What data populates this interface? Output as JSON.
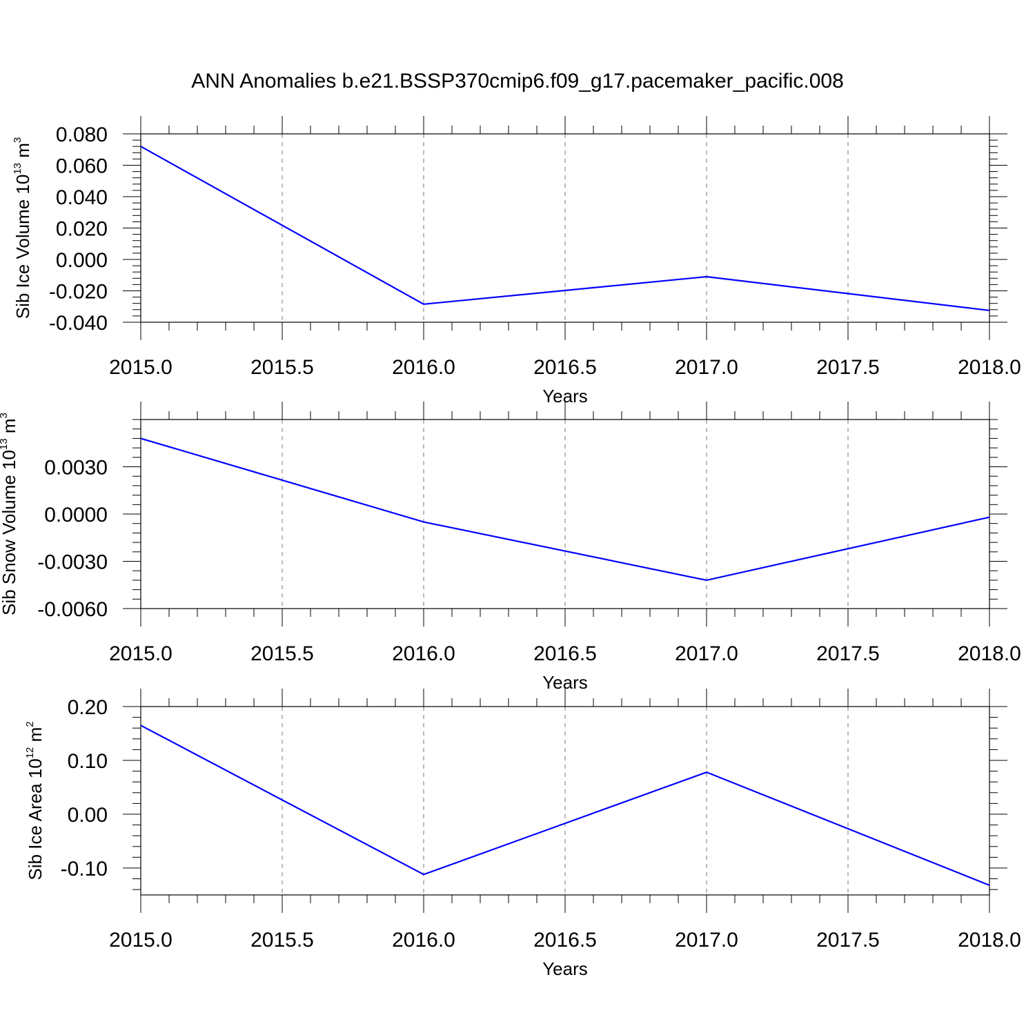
{
  "title": "ANN Anomalies b.e21.BSSP370cmip6.f09_g17.pacemaker_pacific.008",
  "chart_data": [
    {
      "type": "line",
      "title": "",
      "xlabel": "Years",
      "ylabel": {
        "base": "Sib Ice Volume 10",
        "exp1": "13",
        "unit": " m",
        "exp2": "3"
      },
      "xlim": [
        2015.0,
        2018.0
      ],
      "ylim": [
        -0.04,
        0.08
      ],
      "x_ticks": [
        2015.0,
        2015.5,
        2016.0,
        2016.5,
        2017.0,
        2017.5,
        2018.0
      ],
      "x_tick_labels": [
        "2015.0",
        "2015.5",
        "2016.0",
        "2016.5",
        "2017.0",
        "2017.5",
        "2018.0"
      ],
      "y_ticks": [
        0.08,
        0.06,
        0.04,
        0.02,
        0.0,
        -0.02,
        -0.04
      ],
      "y_tick_labels": [
        "0.080",
        "0.060",
        "0.040",
        "0.020",
        "0.000",
        "-0.020",
        "-0.040"
      ],
      "grid": "vertical dashed",
      "series": [
        {
          "color": "#0000ff",
          "x": [
            2015,
            2016,
            2017,
            2018
          ],
          "values": [
            0.072,
            -0.0285,
            -0.011,
            -0.0325
          ]
        }
      ]
    },
    {
      "type": "line",
      "title": "",
      "xlabel": "Years",
      "ylabel": {
        "base": "Sib Snow Volume 10",
        "exp1": "13",
        "unit": " m",
        "exp2": "3"
      },
      "xlim": [
        2015.0,
        2018.0
      ],
      "ylim": [
        -0.006,
        0.006
      ],
      "x_ticks": [
        2015.0,
        2015.5,
        2016.0,
        2016.5,
        2017.0,
        2017.5,
        2018.0
      ],
      "x_tick_labels": [
        "2015.0",
        "2015.5",
        "2016.0",
        "2016.5",
        "2017.0",
        "2017.5",
        "2018.0"
      ],
      "y_ticks": [
        0.003,
        0.0,
        -0.003,
        -0.006
      ],
      "y_tick_labels": [
        "0.0030",
        "0.0000",
        "-0.0030",
        "-0.0060"
      ],
      "grid": "vertical dashed",
      "series": [
        {
          "color": "#0000ff",
          "x": [
            2015,
            2016,
            2017,
            2018
          ],
          "values": [
            0.0048,
            -0.0005,
            -0.0042,
            -0.0002
          ]
        }
      ]
    },
    {
      "type": "line",
      "title": "",
      "xlabel": "Years",
      "ylabel": {
        "base": "Sib Ice Area 10",
        "exp1": "12",
        "unit": " m",
        "exp2": "2"
      },
      "xlim": [
        2015.0,
        2018.0
      ],
      "ylim": [
        -0.15,
        0.2
      ],
      "x_ticks": [
        2015.0,
        2015.5,
        2016.0,
        2016.5,
        2017.0,
        2017.5,
        2018.0
      ],
      "x_tick_labels": [
        "2015.0",
        "2015.5",
        "2016.0",
        "2016.5",
        "2017.0",
        "2017.5",
        "2018.0"
      ],
      "y_ticks": [
        0.2,
        0.1,
        0.0,
        -0.1
      ],
      "y_tick_labels": [
        "0.20",
        "0.10",
        "0.00",
        "-0.10"
      ],
      "grid": "vertical dashed",
      "series": [
        {
          "color": "#0000ff",
          "x": [
            2015,
            2016,
            2017,
            2018
          ],
          "values": [
            0.165,
            -0.112,
            0.078,
            -0.132
          ]
        }
      ]
    }
  ]
}
